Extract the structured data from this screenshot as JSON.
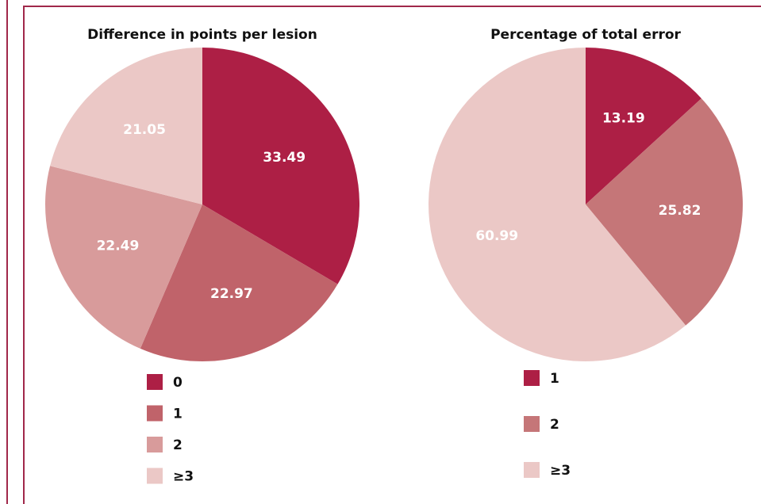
{
  "chart_data": [
    {
      "type": "pie",
      "title": "Difference in points per lesion",
      "categories": [
        "0",
        "1",
        "2",
        "≥3"
      ],
      "values": [
        33.49,
        22.97,
        22.49,
        21.05
      ],
      "colors": [
        "#ad1f45",
        "#c0636a",
        "#d89b9b",
        "#ebc8c6"
      ]
    },
    {
      "type": "pie",
      "title": "Percentage of total error",
      "categories": [
        "1",
        "2",
        "≥3"
      ],
      "values": [
        13.19,
        25.82,
        60.99
      ],
      "colors": [
        "#ad1f45",
        "#c57678",
        "#ebc8c6"
      ]
    }
  ]
}
